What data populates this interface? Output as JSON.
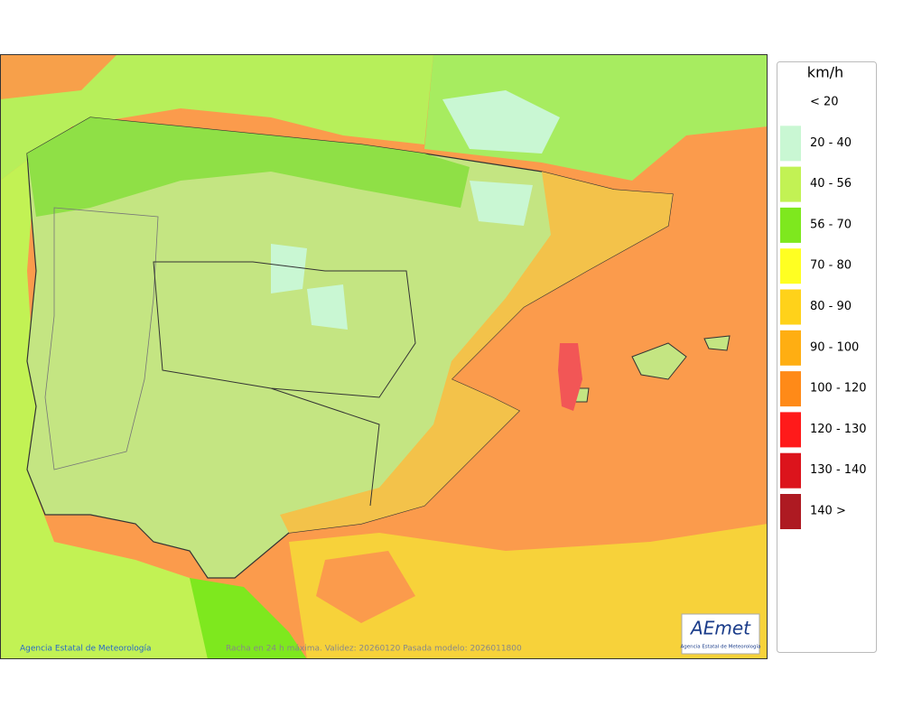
{
  "legend": {
    "title": "km/h",
    "items": [
      {
        "label": "< 20"
      },
      {
        "label": "20 - 40",
        "color": "#c9f7d3"
      },
      {
        "label": "40 - 56",
        "color": "#c2f254"
      },
      {
        "label": "56 - 70",
        "color": "#7ee81e"
      },
      {
        "label": "70 - 80",
        "color": "#ffff22"
      },
      {
        "label": "80 - 90",
        "color": "#ffd21a"
      },
      {
        "label": "90 - 100",
        "color": "#ffae12"
      },
      {
        "label": "100 - 120",
        "color": "#ff8a18"
      },
      {
        "label": "120 - 130",
        "color": "#ff1a1a"
      },
      {
        "label": "130 - 140",
        "color": "#dc141c"
      },
      {
        "label": "140 >",
        "color": "#ae1a22"
      }
    ]
  },
  "footer": {
    "credit": "Agencia Estatal de Meteorología",
    "caption": "Racha en 24 h máxima. Validez: 20260120 Pasada modelo: 2026011800"
  },
  "logo": {
    "name": "AEmet",
    "subtitle": "Agencia Estatal de Meteorología"
  }
}
